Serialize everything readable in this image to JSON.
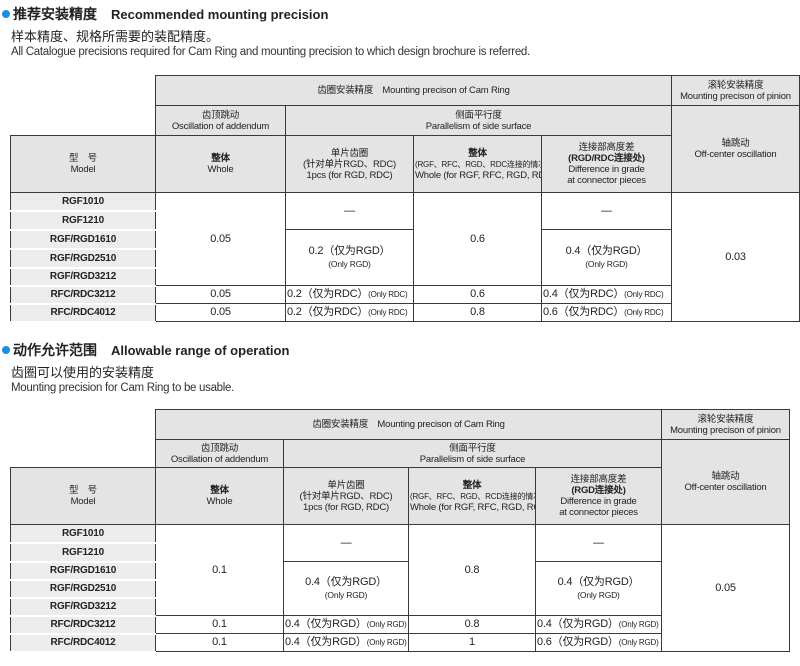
{
  "sections": [
    {
      "title_cn": "推荐安装精度",
      "title_en": "Recommended mounting precision",
      "subtitle_cn": "样本精度、规格所需要的装配精度。",
      "subtitle_en": "All Catalogue precisions required for Cam Ring and mounting precision to which design brochure is referred.",
      "table": {
        "header": {
          "cam_ring": "齿圈安装精度　Mounting precison of Cam Ring",
          "pinion": {
            "cn": "滚轮安装精度",
            "en": "Mounting precison of pinion"
          },
          "addendum": {
            "cn": "齿顶跳动",
            "en": "Oscillation of addendum"
          },
          "parallelism": {
            "cn": "侧面平行度",
            "en": "Parallelism of side surface"
          },
          "model": {
            "cn": "型　号",
            "en": "Model"
          },
          "whole": {
            "cn": "整体",
            "en": "Whole"
          },
          "single": {
            "cn": "单片齿圈",
            "sub": "(针对单片RGD、RDC)",
            "en": "1pcs (for RGD, RDC)"
          },
          "whole2": {
            "cn": "整体",
            "sub": "(RGF、RFC、RGD、RDC连接的情况下)",
            "en": "Whole (for RGF, RFC, RGD, RDC)"
          },
          "diff": {
            "cn": "连接部高度差",
            "sub": "(RGD/RDC连接处)",
            "en1": "Difference in grade",
            "en2": "at connector pieces"
          },
          "pinion_sub": {
            "cn": "轴跳动",
            "en": "Off-center oscillation"
          }
        },
        "models": [
          "RGF1010",
          "RGF1210",
          "RGF/RGD1610",
          "RGF/RGD2510",
          "RGF/RGD3212",
          "RFC/RDC3212",
          "RFC/RDC4012"
        ],
        "group": {
          "addendum": "0.05",
          "single_a": "—",
          "single_b": "0.2（仅为RGD）",
          "single_b_en": "(Only RGD)",
          "whole": "0.6",
          "diff_a": "—",
          "diff_b": "0.4（仅为RGD）",
          "diff_b_en": "(Only RGD)"
        },
        "pinion": "0.03",
        "rows": [
          {
            "addendum": "0.05",
            "single": "0.2（仅为RDC）",
            "single_en": "(Only RDC)",
            "whole": "0.6",
            "diff": "0.4（仅为RDC）",
            "diff_en": "(Only RDC)"
          },
          {
            "addendum": "0.05",
            "single": "0.2（仅为RDC）",
            "single_en": "(Only RDC)",
            "whole": "0.8",
            "diff": "0.6（仅为RDC）",
            "diff_en": "(Only RDC)"
          }
        ]
      }
    },
    {
      "title_cn": "动作允许范围",
      "title_en": "Allowable range of operation",
      "subtitle_cn": "齿圈可以使用的安装精度",
      "subtitle_en": "Mounting precision for Cam Ring to be usable.",
      "table": {
        "header": {
          "cam_ring": "齿圈安装精度　Mounting precison of Cam Ring",
          "pinion": {
            "cn": "滚轮安装精度",
            "en": "Mounting precison of pinion"
          },
          "addendum": {
            "cn": "齿顶跳动",
            "en": "Oscillation of addendum"
          },
          "parallelism": {
            "cn": "侧面平行度",
            "en": "Parallelism of side surface"
          },
          "model": {
            "cn": "型　号",
            "en": "Model"
          },
          "whole": {
            "cn": "整体",
            "en": "Whole"
          },
          "single": {
            "cn": "单片齿圈",
            "sub": "(针对单片RGD、RDC)",
            "en": "1pcs (for RGD, RDC)"
          },
          "whole2": {
            "cn": "整体",
            "sub": "(RGF、RFC、RGD、RCD连接的情况下)",
            "en": "Whole (for RGF, RFC, RGD, RCD)"
          },
          "diff": {
            "cn": "连接部高度差",
            "sub": "(RGD连接处)",
            "en1": "Difference in grade",
            "en2": "at connector pieces"
          },
          "pinion_sub": {
            "cn": "轴跳动",
            "en": "Off-center oscillation"
          }
        },
        "models": [
          "RGF1010",
          "RGF1210",
          "RGF/RGD1610",
          "RGF/RGD2510",
          "RGF/RGD3212",
          "RFC/RDC3212",
          "RFC/RDC4012"
        ],
        "group": {
          "addendum": "0.1",
          "single_a": "—",
          "single_b": "0.4（仅为RGD）",
          "single_b_en": "(Only RGD)",
          "whole": "0.8",
          "diff_a": "—",
          "diff_b": "0.4（仅为RGD）",
          "diff_b_en": "(Only RGD)"
        },
        "pinion": "0.05",
        "rows": [
          {
            "addendum": "0.1",
            "single": "0.4（仅为RGD）",
            "single_en": "(Only RGD)",
            "whole": "0.8",
            "diff": "0.4（仅为RGD）",
            "diff_en": "(Only RGD)"
          },
          {
            "addendum": "0.1",
            "single": "0.4（仅为RGD）",
            "single_en": "(Only RGD)",
            "whole": "1",
            "diff": "0.6（仅为RGD）",
            "diff_en": "(Only RGD)"
          }
        ]
      }
    }
  ]
}
